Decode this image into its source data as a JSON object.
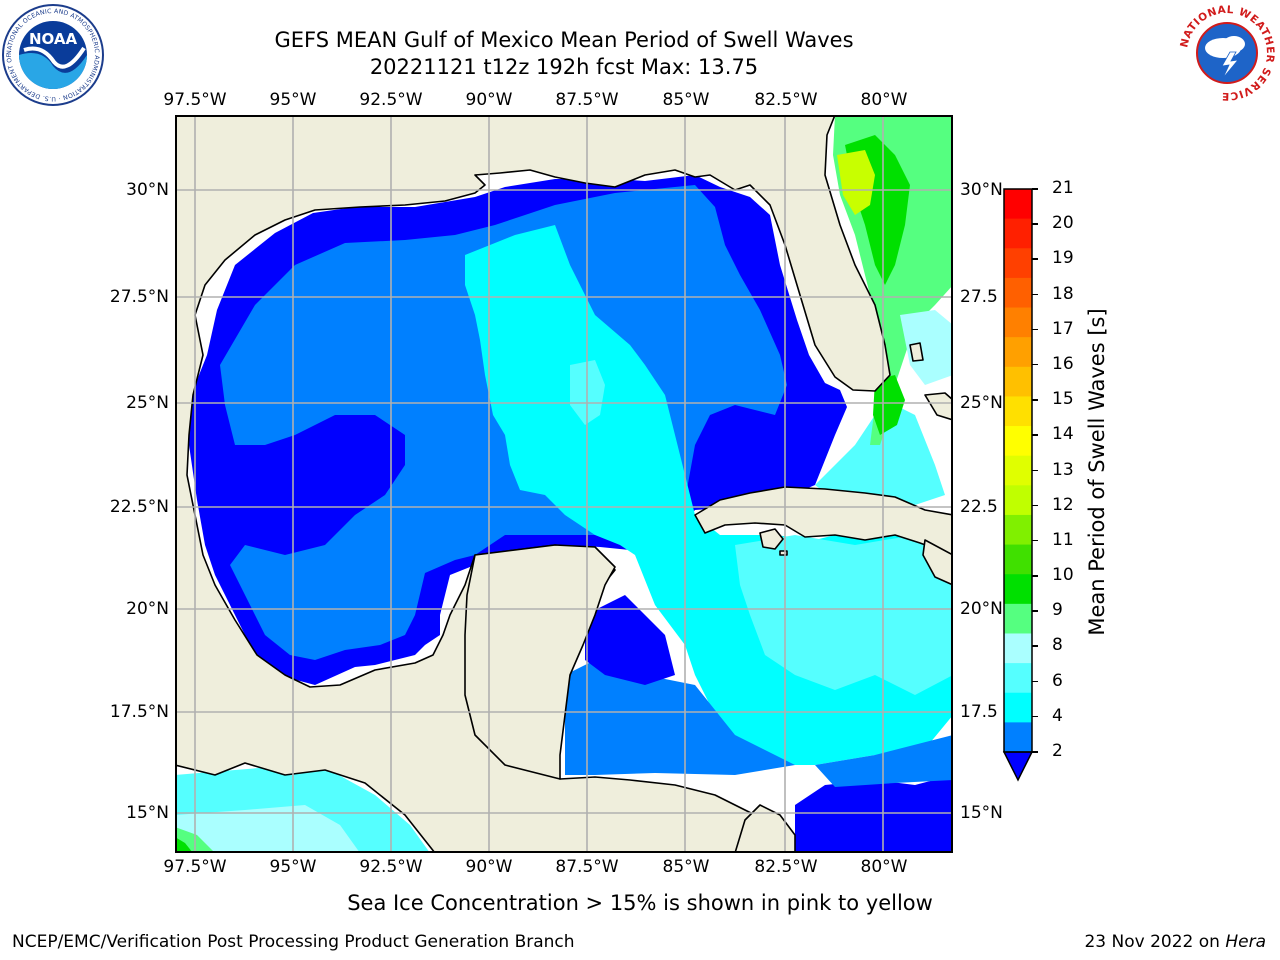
{
  "header": {
    "title_line1": "GEFS MEAN Gulf of Mexico Mean Period of Swell Waves",
    "title_line2": "20221121 t12z 192h fcst   Max: 13.75"
  },
  "logos": {
    "noaa_text": "NOAA",
    "noaa_ring_text": "NATIONAL OCEANIC AND ATMOSPHERIC ADMINISTRATION · U.S. DEPARTMENT OF COMMERCE",
    "nws_ring_text": "NATIONAL WEATHER SERVICE"
  },
  "map": {
    "lon_ticks": [
      "97.5°W",
      "95°W",
      "92.5°W",
      "90°W",
      "87.5°W",
      "85°W",
      "82.5°W",
      "80°W"
    ],
    "lat_ticks_left": [
      "30°N",
      "27.5°N",
      "25°N",
      "22.5°N",
      "20°N",
      "17.5°N",
      "15°N"
    ],
    "lat_ticks_right": [
      "30°N",
      "27.5",
      "25°N",
      "22.5",
      "20°N",
      "17.5",
      "15°N"
    ],
    "colors": {
      "land": "#efeedc",
      "grid": "#b0b0b0",
      "ocean_darkblue": "#0000ff",
      "ocean_blue": "#0080ff",
      "ocean_cyan": "#00ffff",
      "ocean_lightcyan": "#55ffff",
      "ocean_palecyan": "#aaffff",
      "ocean_green": "#55ff80",
      "ocean_brightgreen": "#00e000",
      "ocean_yellowgreen": "#c8ff00"
    }
  },
  "colorbar": {
    "label": "Mean Period of Swell Waves [s]",
    "ticks": [
      "21",
      "20",
      "19",
      "18",
      "17",
      "16",
      "15",
      "14",
      "13",
      "12",
      "11",
      "10",
      "9",
      "8",
      "6",
      "4",
      "2"
    ],
    "segment_colors": [
      "#ff0000",
      "#ff2000",
      "#ff4000",
      "#ff6000",
      "#ff8000",
      "#ffa000",
      "#ffc000",
      "#ffe000",
      "#ffff00",
      "#e0ff00",
      "#c0ff00",
      "#80f000",
      "#40e000",
      "#00e000",
      "#55ff80",
      "#aaffff",
      "#55ffff",
      "#00ffff",
      "#0080ff"
    ],
    "extend_color": "#0000ff"
  },
  "footer": {
    "note": "Sea Ice Concentration > 15% is shown in pink to yellow",
    "credit": "NCEP/EMC/Verification Post Processing Product Generation Branch",
    "date_prefix": "23 Nov 2022 on ",
    "machine": "Hera"
  }
}
